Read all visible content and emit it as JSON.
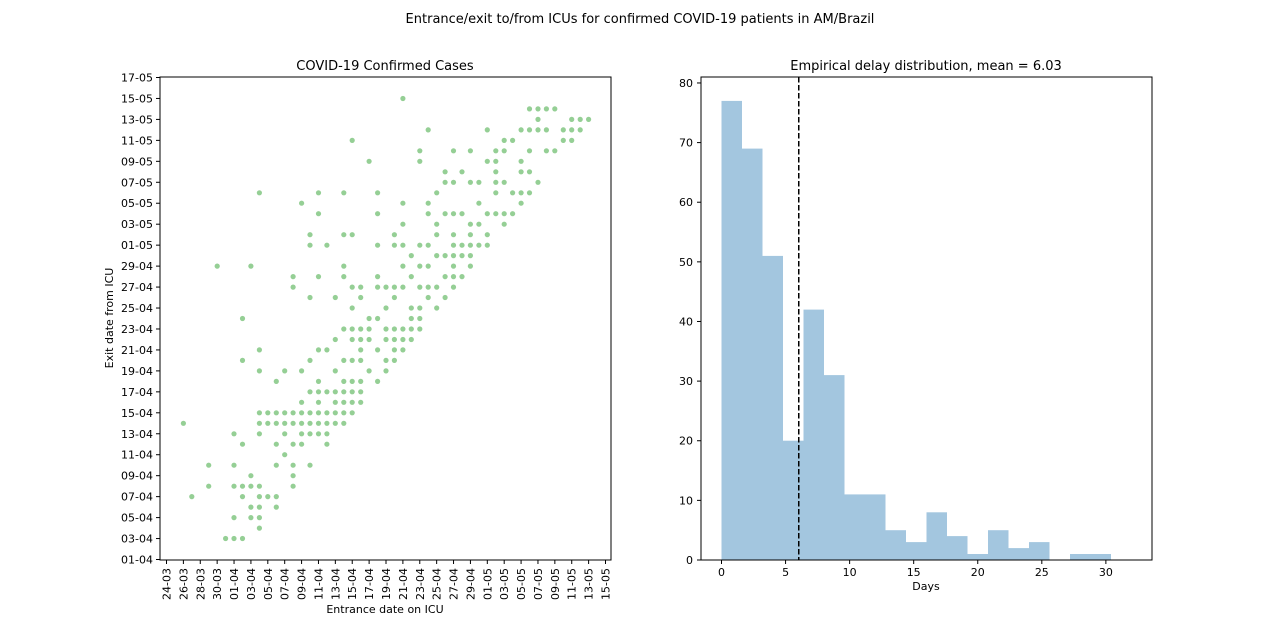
{
  "figure": {
    "suptitle": "Entrance/exit to/from ICUs for confirmed COVID-19 patients in AM/Brazil"
  },
  "chart_data": [
    {
      "type": "scatter",
      "title": "COVID-19 Confirmed Cases",
      "xlabel": "Entrance date on ICU",
      "ylabel": "Exit date from ICU",
      "xticks": [
        "24-03",
        "26-03",
        "28-03",
        "30-03",
        "01-04",
        "03-04",
        "05-04",
        "07-04",
        "09-04",
        "11-04",
        "13-04",
        "15-04",
        "17-04",
        "19-04",
        "21-04",
        "23-04",
        "25-04",
        "27-04",
        "29-04",
        "01-05",
        "03-05",
        "05-05",
        "07-05",
        "09-05",
        "11-05",
        "13-05",
        "15-05"
      ],
      "yticks": [
        "01-04",
        "03-04",
        "05-04",
        "07-04",
        "09-04",
        "11-04",
        "13-04",
        "15-04",
        "17-04",
        "19-04",
        "21-04",
        "23-04",
        "25-04",
        "27-04",
        "29-04",
        "01-05",
        "03-05",
        "05-05",
        "07-05",
        "09-05",
        "11-05",
        "13-05",
        "15-05",
        "17-05"
      ],
      "color": "#2ca02c",
      "points": [
        [
          "26-03",
          "14-04"
        ],
        [
          "27-03",
          "07-04"
        ],
        [
          "29-03",
          "08-04"
        ],
        [
          "29-03",
          "10-04"
        ],
        [
          "30-03",
          "29-04"
        ],
        [
          "31-03",
          "03-04"
        ],
        [
          "01-04",
          "03-04"
        ],
        [
          "01-04",
          "05-04"
        ],
        [
          "01-04",
          "08-04"
        ],
        [
          "01-04",
          "10-04"
        ],
        [
          "01-04",
          "13-04"
        ],
        [
          "02-04",
          "03-04"
        ],
        [
          "02-04",
          "07-04"
        ],
        [
          "02-04",
          "08-04"
        ],
        [
          "02-04",
          "12-04"
        ],
        [
          "02-04",
          "20-04"
        ],
        [
          "02-04",
          "24-04"
        ],
        [
          "03-04",
          "05-04"
        ],
        [
          "03-04",
          "06-04"
        ],
        [
          "03-04",
          "08-04"
        ],
        [
          "03-04",
          "09-04"
        ],
        [
          "03-04",
          "29-04"
        ],
        [
          "04-04",
          "04-04"
        ],
        [
          "04-04",
          "05-04"
        ],
        [
          "04-04",
          "06-04"
        ],
        [
          "04-04",
          "07-04"
        ],
        [
          "04-04",
          "08-04"
        ],
        [
          "04-04",
          "13-04"
        ],
        [
          "04-04",
          "14-04"
        ],
        [
          "04-04",
          "15-04"
        ],
        [
          "04-04",
          "19-04"
        ],
        [
          "04-04",
          "21-04"
        ],
        [
          "04-04",
          "06-05"
        ],
        [
          "05-04",
          "07-04"
        ],
        [
          "05-04",
          "14-04"
        ],
        [
          "05-04",
          "15-04"
        ],
        [
          "06-04",
          "06-04"
        ],
        [
          "06-04",
          "07-04"
        ],
        [
          "06-04",
          "10-04"
        ],
        [
          "06-04",
          "12-04"
        ],
        [
          "06-04",
          "14-04"
        ],
        [
          "06-04",
          "15-04"
        ],
        [
          "06-04",
          "18-04"
        ],
        [
          "07-04",
          "11-04"
        ],
        [
          "07-04",
          "13-04"
        ],
        [
          "07-04",
          "14-04"
        ],
        [
          "07-04",
          "15-04"
        ],
        [
          "07-04",
          "19-04"
        ],
        [
          "08-04",
          "08-04"
        ],
        [
          "08-04",
          "09-04"
        ],
        [
          "08-04",
          "10-04"
        ],
        [
          "08-04",
          "12-04"
        ],
        [
          "08-04",
          "14-04"
        ],
        [
          "08-04",
          "15-04"
        ],
        [
          "08-04",
          "28-04"
        ],
        [
          "08-04",
          "27-04"
        ],
        [
          "09-04",
          "12-04"
        ],
        [
          "09-04",
          "13-04"
        ],
        [
          "09-04",
          "14-04"
        ],
        [
          "09-04",
          "15-04"
        ],
        [
          "09-04",
          "16-04"
        ],
        [
          "09-04",
          "19-04"
        ],
        [
          "09-04",
          "05-05"
        ],
        [
          "10-04",
          "10-04"
        ],
        [
          "10-04",
          "13-04"
        ],
        [
          "10-04",
          "14-04"
        ],
        [
          "10-04",
          "15-04"
        ],
        [
          "10-04",
          "17-04"
        ],
        [
          "10-04",
          "20-04"
        ],
        [
          "10-04",
          "26-04"
        ],
        [
          "10-04",
          "01-05"
        ],
        [
          "10-04",
          "02-05"
        ],
        [
          "11-04",
          "13-04"
        ],
        [
          "11-04",
          "14-04"
        ],
        [
          "11-04",
          "15-04"
        ],
        [
          "11-04",
          "16-04"
        ],
        [
          "11-04",
          "17-04"
        ],
        [
          "11-04",
          "18-04"
        ],
        [
          "11-04",
          "21-04"
        ],
        [
          "11-04",
          "28-04"
        ],
        [
          "11-04",
          "04-05"
        ],
        [
          "11-04",
          "06-05"
        ],
        [
          "12-04",
          "12-04"
        ],
        [
          "12-04",
          "13-04"
        ],
        [
          "12-04",
          "14-04"
        ],
        [
          "12-04",
          "15-04"
        ],
        [
          "12-04",
          "17-04"
        ],
        [
          "12-04",
          "21-04"
        ],
        [
          "12-04",
          "01-05"
        ],
        [
          "13-04",
          "14-04"
        ],
        [
          "13-04",
          "15-04"
        ],
        [
          "13-04",
          "16-04"
        ],
        [
          "13-04",
          "17-04"
        ],
        [
          "13-04",
          "19-04"
        ],
        [
          "13-04",
          "22-04"
        ],
        [
          "13-04",
          "26-04"
        ],
        [
          "14-04",
          "14-04"
        ],
        [
          "14-04",
          "15-04"
        ],
        [
          "14-04",
          "16-04"
        ],
        [
          "14-04",
          "17-04"
        ],
        [
          "14-04",
          "18-04"
        ],
        [
          "14-04",
          "20-04"
        ],
        [
          "14-04",
          "23-04"
        ],
        [
          "14-04",
          "28-04"
        ],
        [
          "14-04",
          "29-04"
        ],
        [
          "14-04",
          "02-05"
        ],
        [
          "14-04",
          "06-05"
        ],
        [
          "15-04",
          "15-04"
        ],
        [
          "15-04",
          "16-04"
        ],
        [
          "15-04",
          "17-04"
        ],
        [
          "15-04",
          "18-04"
        ],
        [
          "15-04",
          "20-04"
        ],
        [
          "15-04",
          "22-04"
        ],
        [
          "15-04",
          "23-04"
        ],
        [
          "15-04",
          "25-04"
        ],
        [
          "15-04",
          "27-04"
        ],
        [
          "15-04",
          "02-05"
        ],
        [
          "15-04",
          "11-05"
        ],
        [
          "16-04",
          "16-04"
        ],
        [
          "16-04",
          "17-04"
        ],
        [
          "16-04",
          "18-04"
        ],
        [
          "16-04",
          "20-04"
        ],
        [
          "16-04",
          "21-04"
        ],
        [
          "16-04",
          "22-04"
        ],
        [
          "16-04",
          "23-04"
        ],
        [
          "16-04",
          "26-04"
        ],
        [
          "16-04",
          "27-04"
        ],
        [
          "17-04",
          "19-04"
        ],
        [
          "17-04",
          "22-04"
        ],
        [
          "17-04",
          "23-04"
        ],
        [
          "17-04",
          "24-04"
        ],
        [
          "17-04",
          "09-05"
        ],
        [
          "18-04",
          "18-04"
        ],
        [
          "18-04",
          "21-04"
        ],
        [
          "18-04",
          "24-04"
        ],
        [
          "18-04",
          "27-04"
        ],
        [
          "18-04",
          "28-04"
        ],
        [
          "18-04",
          "01-05"
        ],
        [
          "18-04",
          "04-05"
        ],
        [
          "18-04",
          "06-05"
        ],
        [
          "19-04",
          "19-04"
        ],
        [
          "19-04",
          "20-04"
        ],
        [
          "19-04",
          "22-04"
        ],
        [
          "19-04",
          "23-04"
        ],
        [
          "19-04",
          "25-04"
        ],
        [
          "19-04",
          "27-04"
        ],
        [
          "20-04",
          "20-04"
        ],
        [
          "20-04",
          "21-04"
        ],
        [
          "20-04",
          "22-04"
        ],
        [
          "20-04",
          "23-04"
        ],
        [
          "20-04",
          "26-04"
        ],
        [
          "20-04",
          "27-04"
        ],
        [
          "20-04",
          "01-05"
        ],
        [
          "20-04",
          "02-05"
        ],
        [
          "21-04",
          "21-04"
        ],
        [
          "21-04",
          "22-04"
        ],
        [
          "21-04",
          "23-04"
        ],
        [
          "21-04",
          "27-04"
        ],
        [
          "21-04",
          "29-04"
        ],
        [
          "21-04",
          "01-05"
        ],
        [
          "21-04",
          "03-05"
        ],
        [
          "21-04",
          "05-05"
        ],
        [
          "21-04",
          "15-05"
        ],
        [
          "22-04",
          "22-04"
        ],
        [
          "22-04",
          "23-04"
        ],
        [
          "22-04",
          "24-04"
        ],
        [
          "22-04",
          "25-04"
        ],
        [
          "22-04",
          "28-04"
        ],
        [
          "22-04",
          "30-04"
        ],
        [
          "23-04",
          "23-04"
        ],
        [
          "23-04",
          "24-04"
        ],
        [
          "23-04",
          "25-04"
        ],
        [
          "23-04",
          "27-04"
        ],
        [
          "23-04",
          "29-04"
        ],
        [
          "23-04",
          "01-05"
        ],
        [
          "23-04",
          "09-05"
        ],
        [
          "23-04",
          "10-05"
        ],
        [
          "24-04",
          "26-04"
        ],
        [
          "24-04",
          "27-04"
        ],
        [
          "24-04",
          "29-04"
        ],
        [
          "24-04",
          "01-05"
        ],
        [
          "24-04",
          "04-05"
        ],
        [
          "24-04",
          "05-05"
        ],
        [
          "24-04",
          "12-05"
        ],
        [
          "25-04",
          "25-04"
        ],
        [
          "25-04",
          "27-04"
        ],
        [
          "25-04",
          "30-04"
        ],
        [
          "25-04",
          "02-05"
        ],
        [
          "25-04",
          "03-05"
        ],
        [
          "25-04",
          "06-05"
        ],
        [
          "26-04",
          "26-04"
        ],
        [
          "26-04",
          "28-04"
        ],
        [
          "26-04",
          "30-04"
        ],
        [
          "26-04",
          "04-05"
        ],
        [
          "26-04",
          "07-05"
        ],
        [
          "26-04",
          "08-05"
        ],
        [
          "27-04",
          "27-04"
        ],
        [
          "27-04",
          "28-04"
        ],
        [
          "27-04",
          "29-04"
        ],
        [
          "27-04",
          "30-04"
        ],
        [
          "27-04",
          "01-05"
        ],
        [
          "27-04",
          "02-05"
        ],
        [
          "27-04",
          "04-05"
        ],
        [
          "27-04",
          "07-05"
        ],
        [
          "27-04",
          "10-05"
        ],
        [
          "28-04",
          "28-04"
        ],
        [
          "28-04",
          "30-04"
        ],
        [
          "28-04",
          "01-05"
        ],
        [
          "28-04",
          "04-05"
        ],
        [
          "28-04",
          "08-05"
        ],
        [
          "29-04",
          "29-04"
        ],
        [
          "29-04",
          "30-04"
        ],
        [
          "29-04",
          "01-05"
        ],
        [
          "29-04",
          "02-05"
        ],
        [
          "29-04",
          "03-05"
        ],
        [
          "29-04",
          "07-05"
        ],
        [
          "29-04",
          "10-05"
        ],
        [
          "30-04",
          "01-05"
        ],
        [
          "30-04",
          "03-05"
        ],
        [
          "30-04",
          "05-05"
        ],
        [
          "30-04",
          "07-05"
        ],
        [
          "01-05",
          "01-05"
        ],
        [
          "01-05",
          "02-05"
        ],
        [
          "01-05",
          "04-05"
        ],
        [
          "01-05",
          "09-05"
        ],
        [
          "01-05",
          "12-05"
        ],
        [
          "02-05",
          "04-05"
        ],
        [
          "02-05",
          "06-05"
        ],
        [
          "02-05",
          "07-05"
        ],
        [
          "02-05",
          "08-05"
        ],
        [
          "02-05",
          "09-05"
        ],
        [
          "02-05",
          "10-05"
        ],
        [
          "03-05",
          "03-05"
        ],
        [
          "03-05",
          "04-05"
        ],
        [
          "03-05",
          "07-05"
        ],
        [
          "03-05",
          "10-05"
        ],
        [
          "03-05",
          "11-05"
        ],
        [
          "04-05",
          "04-05"
        ],
        [
          "04-05",
          "06-05"
        ],
        [
          "04-05",
          "11-05"
        ],
        [
          "05-05",
          "05-05"
        ],
        [
          "05-05",
          "06-05"
        ],
        [
          "05-05",
          "08-05"
        ],
        [
          "05-05",
          "09-05"
        ],
        [
          "05-05",
          "12-05"
        ],
        [
          "06-05",
          "06-05"
        ],
        [
          "06-05",
          "08-05"
        ],
        [
          "06-05",
          "10-05"
        ],
        [
          "06-05",
          "12-05"
        ],
        [
          "06-05",
          "14-05"
        ],
        [
          "07-05",
          "07-05"
        ],
        [
          "07-05",
          "12-05"
        ],
        [
          "07-05",
          "13-05"
        ],
        [
          "07-05",
          "14-05"
        ],
        [
          "08-05",
          "10-05"
        ],
        [
          "08-05",
          "12-05"
        ],
        [
          "08-05",
          "14-05"
        ],
        [
          "09-05",
          "10-05"
        ],
        [
          "09-05",
          "14-05"
        ],
        [
          "10-05",
          "11-05"
        ],
        [
          "10-05",
          "12-05"
        ],
        [
          "11-05",
          "11-05"
        ],
        [
          "11-05",
          "12-05"
        ],
        [
          "11-05",
          "13-05"
        ],
        [
          "12-05",
          "12-05"
        ],
        [
          "12-05",
          "13-05"
        ],
        [
          "13-05",
          "13-05"
        ]
      ]
    },
    {
      "type": "bar",
      "title": "Empirical delay distribution, mean = 6.03",
      "xlabel": "Days",
      "ylabel": "",
      "xlim": [
        -1.6,
        33.6
      ],
      "ylim": [
        0,
        81
      ],
      "xticks": [
        0,
        5,
        10,
        15,
        20,
        25,
        30
      ],
      "yticks": [
        0,
        10,
        20,
        30,
        40,
        50,
        60,
        70,
        80
      ],
      "bin_edges": [
        0,
        1.6,
        3.2,
        4.8,
        6.4,
        8.0,
        9.6,
        11.2,
        12.8,
        14.4,
        16.0,
        17.6,
        19.2,
        20.8,
        22.4,
        24.0,
        25.6,
        27.2,
        28.8,
        30.4,
        32.0
      ],
      "values": [
        77,
        69,
        51,
        20,
        42,
        31,
        11,
        11,
        5,
        3,
        8,
        4,
        1,
        5,
        2,
        3,
        0,
        1,
        1,
        0
      ],
      "mean_line": 6.03,
      "color": "#a3c6df"
    }
  ]
}
